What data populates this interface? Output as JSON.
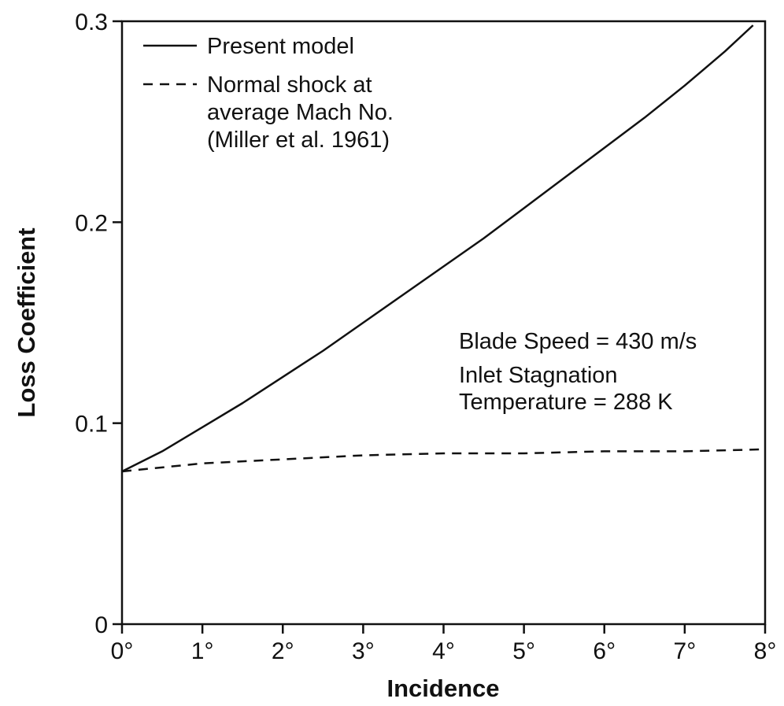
{
  "chart_data": {
    "type": "line",
    "title": "",
    "xlabel": "Incidence",
    "ylabel": "Loss Coefficient",
    "xlim": [
      0,
      8
    ],
    "ylim": [
      0,
      0.3
    ],
    "grid": false,
    "legend_position": "top-left",
    "x_ticks": [
      0,
      1,
      2,
      3,
      4,
      5,
      6,
      7,
      8
    ],
    "x_tick_labels": [
      "0°",
      "1°",
      "2°",
      "3°",
      "4°",
      "5°",
      "6°",
      "7°",
      "8°"
    ],
    "y_ticks": [
      0,
      0.1,
      0.2,
      0.3
    ],
    "y_tick_labels": [
      "0",
      "0.1",
      "0.2",
      "0.3"
    ],
    "series": [
      {
        "name": "Present model",
        "style": "solid",
        "x": [
          0,
          0.5,
          1,
          1.5,
          2,
          2.5,
          3,
          3.5,
          4,
          4.5,
          5,
          5.5,
          6,
          6.5,
          7,
          7.5,
          7.85
        ],
        "y": [
          0.076,
          0.086,
          0.098,
          0.11,
          0.123,
          0.136,
          0.15,
          0.164,
          0.178,
          0.192,
          0.207,
          0.222,
          0.237,
          0.252,
          0.268,
          0.285,
          0.298
        ]
      },
      {
        "name": "Normal shock at average Mach No. (Miller et al. 1961)",
        "legend_lines": [
          "Normal shock at",
          "average Mach No.",
          "(Miller et al. 1961)"
        ],
        "style": "dashed",
        "x": [
          0,
          1,
          2,
          3,
          4,
          5,
          6,
          7,
          8
        ],
        "y": [
          0.076,
          0.08,
          0.082,
          0.084,
          0.085,
          0.085,
          0.086,
          0.086,
          0.087
        ]
      }
    ],
    "annotations": [
      "Blade Speed = 430 m/s",
      "Inlet Stagnation",
      "Temperature = 288 K"
    ]
  }
}
